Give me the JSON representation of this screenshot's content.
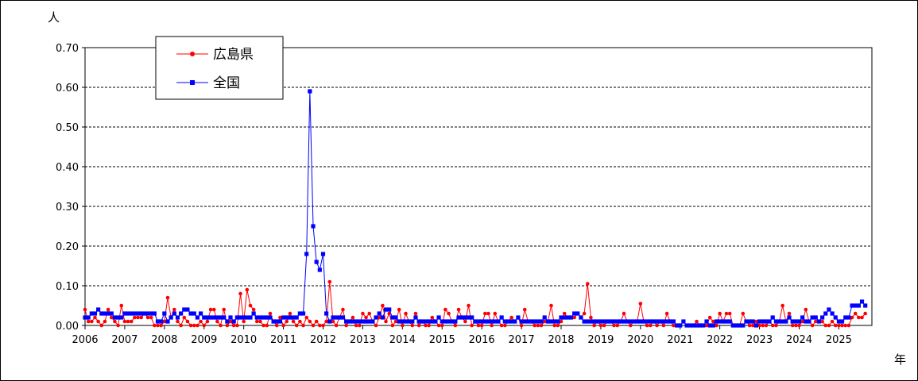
{
  "chart_data": {
    "type": "line",
    "ylabel": "人",
    "xlabel": "年",
    "ylim": [
      0,
      0.7
    ],
    "y_ticks": [
      "0.00",
      "0.10",
      "0.20",
      "0.30",
      "0.40",
      "0.50",
      "0.60",
      "0.70"
    ],
    "x_ticks": [
      "2006",
      "2007",
      "2008",
      "2009",
      "2010",
      "2011",
      "2012",
      "2013",
      "2014",
      "2015",
      "2016",
      "2017",
      "2018",
      "2019",
      "2020",
      "2021",
      "2022",
      "2023",
      "2024",
      "2025"
    ],
    "x_start": "2006-01",
    "grid": "horizontal dashed",
    "legend_position": "top-left",
    "series": [
      {
        "name": "広島県",
        "color": "#ff0000",
        "marker": "circle",
        "values": [
          0.04,
          0.01,
          0.01,
          0.02,
          0.01,
          0.0,
          0.01,
          0.04,
          0.02,
          0.01,
          0.0,
          0.05,
          0.01,
          0.01,
          0.01,
          0.02,
          0.02,
          0.02,
          0.03,
          0.02,
          0.02,
          0.0,
          0.0,
          0.0,
          0.01,
          0.07,
          0.02,
          0.04,
          0.01,
          0.0,
          0.02,
          0.01,
          0.0,
          0.0,
          0.0,
          0.01,
          0.0,
          0.01,
          0.04,
          0.04,
          0.01,
          0.0,
          0.04,
          0.0,
          0.01,
          0.0,
          0.0,
          0.08,
          0.01,
          0.09,
          0.05,
          0.04,
          0.01,
          0.01,
          0.0,
          0.0,
          0.03,
          0.01,
          0.0,
          0.02,
          0.0,
          0.01,
          0.03,
          0.01,
          0.0,
          0.01,
          0.0,
          0.02,
          0.01,
          0.0,
          0.01,
          0.0,
          0.0,
          0.01,
          0.11,
          0.01,
          0.0,
          0.02,
          0.04,
          0.0,
          0.01,
          0.02,
          0.0,
          0.0,
          0.03,
          0.02,
          0.03,
          0.01,
          0.0,
          0.02,
          0.05,
          0.01,
          0.03,
          0.0,
          0.01,
          0.04,
          0.0,
          0.03,
          0.01,
          0.0,
          0.03,
          0.0,
          0.01,
          0.0,
          0.0,
          0.02,
          0.01,
          0.0,
          0.0,
          0.04,
          0.03,
          0.01,
          0.0,
          0.04,
          0.02,
          0.01,
          0.05,
          0.0,
          0.01,
          0.0,
          0.0,
          0.03,
          0.03,
          0.0,
          0.03,
          0.01,
          0.0,
          0.0,
          0.01,
          0.02,
          0.01,
          0.02,
          0.0,
          0.04,
          0.01,
          0.01,
          0.0,
          0.0,
          0.0,
          0.01,
          0.01,
          0.05,
          0.0,
          0.0,
          0.01,
          0.03,
          0.02,
          0.02,
          0.02,
          0.03,
          0.02,
          0.03,
          0.105,
          0.02,
          0.0,
          0.01,
          0.0,
          0.0,
          0.01,
          0.01,
          0.0,
          0.0,
          0.01,
          0.03,
          0.01,
          0.0,
          0.01,
          0.01,
          0.055,
          0.01,
          0.0,
          0.0,
          0.01,
          0.0,
          0.01,
          0.0,
          0.03,
          0.01,
          0.0,
          0.0,
          0.0,
          0.01,
          0.0,
          0.0,
          0.0,
          0.01,
          0.0,
          0.0,
          0.0,
          0.02,
          0.01,
          0.0,
          0.03,
          0.01,
          0.03,
          0.03,
          0.0,
          0.0,
          0.0,
          0.03,
          0.01,
          0.0,
          0.0,
          0.01,
          0.0,
          0.0,
          0.0,
          0.01,
          0.0,
          0.0,
          0.01,
          0.05,
          0.01,
          0.03,
          0.0,
          0.0,
          0.0,
          0.01,
          0.04,
          0.01,
          0.0,
          0.01,
          0.01,
          0.01,
          0.0,
          0.0,
          0.01,
          0.0,
          0.0,
          0.0,
          0.0,
          0.0,
          0.02,
          0.03,
          0.02,
          0.02,
          0.03
        ]
      },
      {
        "name": "全国",
        "color": "#0000ff",
        "marker": "square",
        "values": [
          0.02,
          0.02,
          0.03,
          0.03,
          0.04,
          0.03,
          0.03,
          0.03,
          0.03,
          0.02,
          0.02,
          0.02,
          0.03,
          0.03,
          0.03,
          0.03,
          0.03,
          0.03,
          0.03,
          0.03,
          0.03,
          0.03,
          0.01,
          0.01,
          0.03,
          0.01,
          0.02,
          0.03,
          0.02,
          0.03,
          0.04,
          0.04,
          0.03,
          0.03,
          0.02,
          0.03,
          0.02,
          0.02,
          0.02,
          0.02,
          0.02,
          0.02,
          0.02,
          0.01,
          0.02,
          0.01,
          0.02,
          0.02,
          0.02,
          0.02,
          0.02,
          0.03,
          0.02,
          0.02,
          0.02,
          0.02,
          0.02,
          0.01,
          0.01,
          0.01,
          0.02,
          0.02,
          0.02,
          0.02,
          0.02,
          0.03,
          0.03,
          0.18,
          0.59,
          0.25,
          0.16,
          0.14,
          0.18,
          0.03,
          0.01,
          0.02,
          0.02,
          0.02,
          0.02,
          0.01,
          0.01,
          0.01,
          0.01,
          0.01,
          0.01,
          0.01,
          0.01,
          0.01,
          0.02,
          0.03,
          0.02,
          0.04,
          0.04,
          0.02,
          0.02,
          0.01,
          0.01,
          0.01,
          0.01,
          0.01,
          0.02,
          0.01,
          0.01,
          0.01,
          0.01,
          0.01,
          0.01,
          0.02,
          0.01,
          0.01,
          0.01,
          0.01,
          0.01,
          0.02,
          0.02,
          0.02,
          0.02,
          0.02,
          0.01,
          0.01,
          0.01,
          0.01,
          0.01,
          0.01,
          0.01,
          0.01,
          0.02,
          0.01,
          0.01,
          0.01,
          0.01,
          0.02,
          0.01,
          0.01,
          0.01,
          0.01,
          0.01,
          0.01,
          0.01,
          0.02,
          0.01,
          0.01,
          0.01,
          0.01,
          0.02,
          0.02,
          0.02,
          0.02,
          0.03,
          0.03,
          0.02,
          0.01,
          0.01,
          0.01,
          0.01,
          0.01,
          0.01,
          0.01,
          0.01,
          0.01,
          0.01,
          0.01,
          0.01,
          0.01,
          0.01,
          0.01,
          0.01,
          0.01,
          0.01,
          0.01,
          0.01,
          0.01,
          0.01,
          0.01,
          0.01,
          0.01,
          0.01,
          0.01,
          0.01,
          0.0,
          0.0,
          0.01,
          0.0,
          0.0,
          0.0,
          0.0,
          0.0,
          0.0,
          0.01,
          0.0,
          0.0,
          0.01,
          0.01,
          0.01,
          0.01,
          0.01,
          0.0,
          0.0,
          0.0,
          0.0,
          0.01,
          0.01,
          0.01,
          0.0,
          0.01,
          0.01,
          0.01,
          0.01,
          0.02,
          0.01,
          0.01,
          0.01,
          0.01,
          0.02,
          0.01,
          0.01,
          0.01,
          0.02,
          0.01,
          0.01,
          0.02,
          0.02,
          0.01,
          0.02,
          0.03,
          0.04,
          0.03,
          0.02,
          0.01,
          0.01,
          0.02,
          0.02,
          0.05,
          0.05,
          0.05,
          0.06,
          0.05
        ]
      }
    ]
  }
}
